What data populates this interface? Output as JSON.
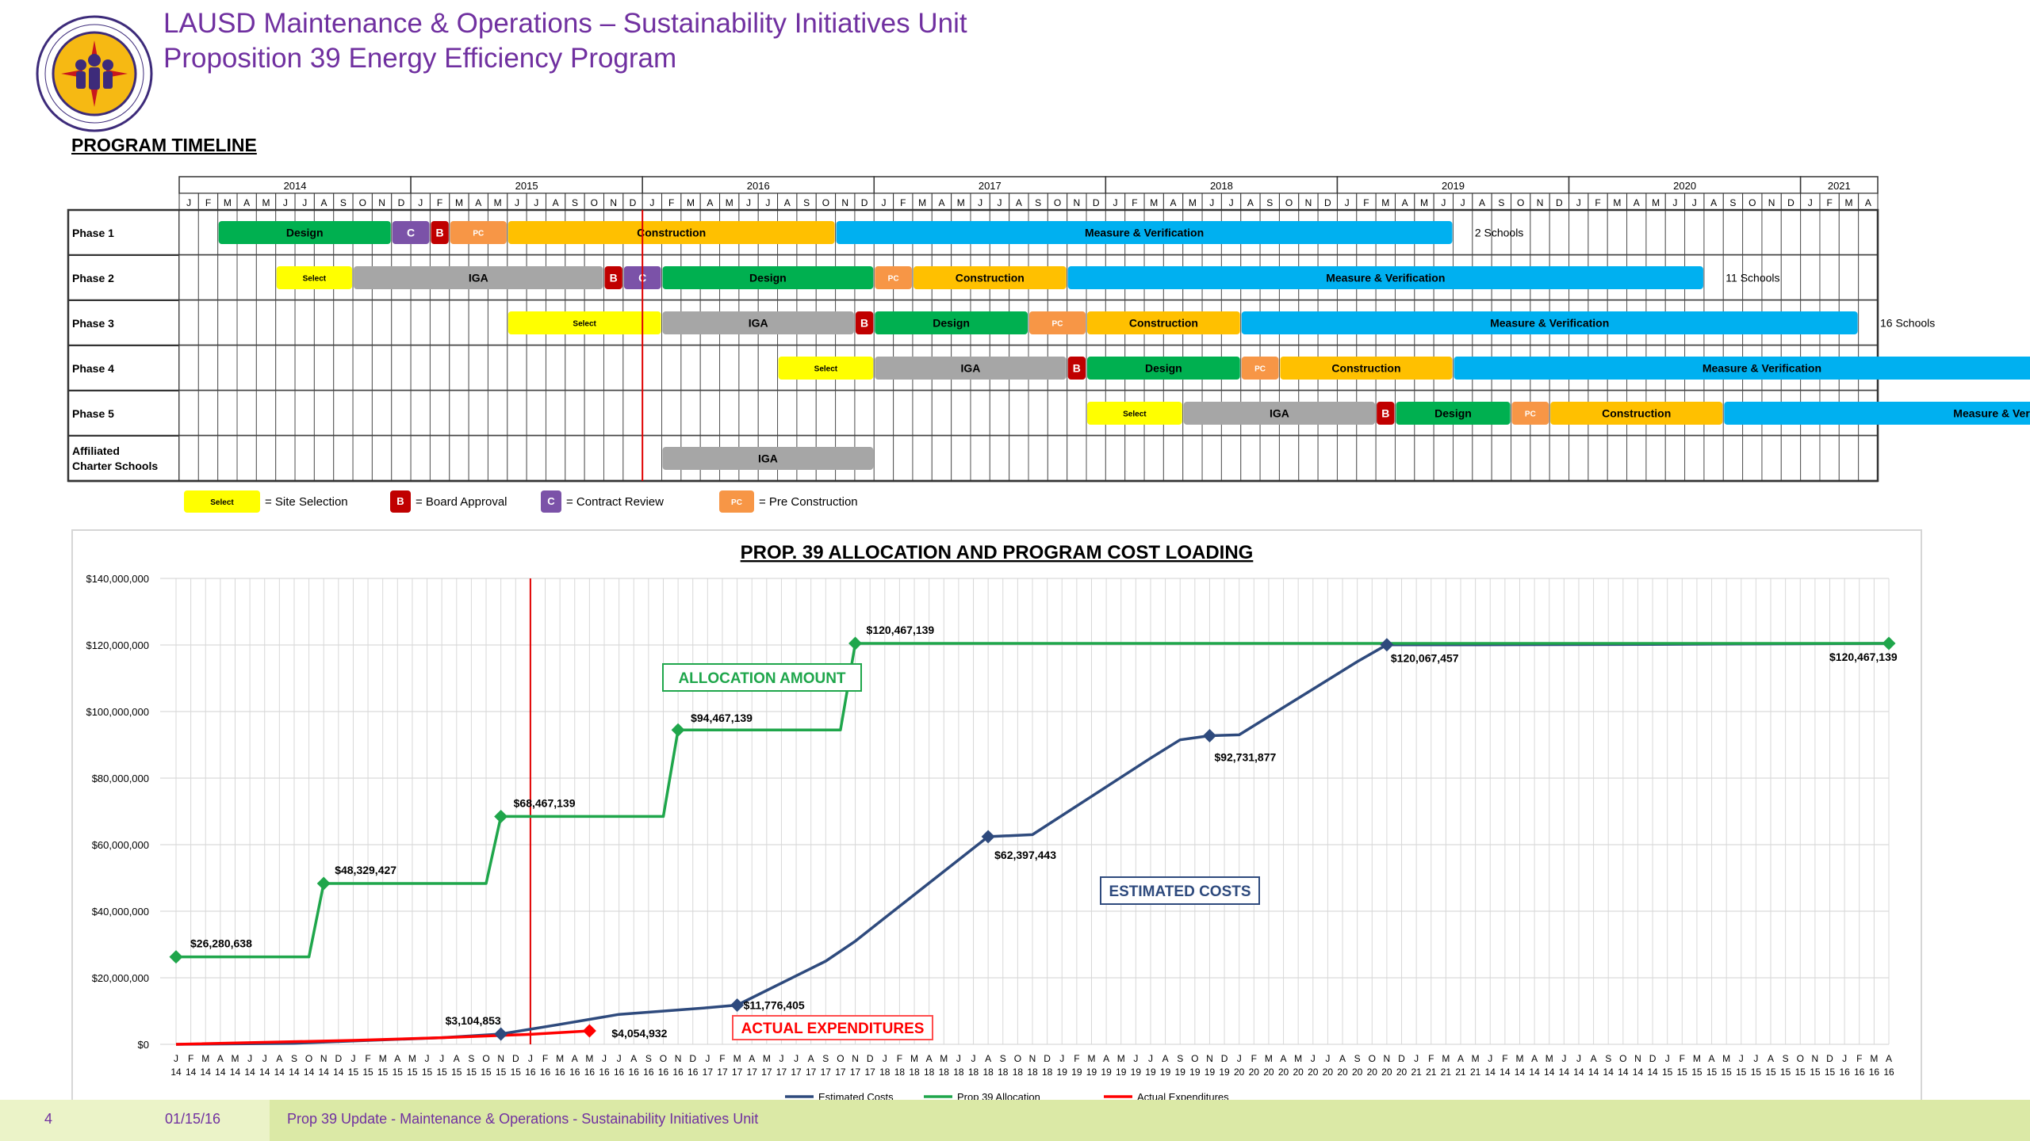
{
  "header": {
    "title_line1": "LAUSD Maintenance & Operations – Sustainability Initiatives Unit",
    "title_line2": "Proposition 39 Energy Efficiency Program",
    "logo_icon": "lausd-board-of-education-seal-icon",
    "logo_text": "LOS ANGELES UNIFIED SCHOOL DISTRICT · BOARD OF EDUCATION"
  },
  "timeline": {
    "title": "PROGRAM TIMELINE",
    "years": [
      "2014",
      "2015",
      "2016",
      "2017",
      "2018",
      "2019",
      "2020",
      "2021"
    ],
    "months": [
      "J",
      "F",
      "M",
      "A",
      "M",
      "J",
      "J",
      "A",
      "S",
      "O",
      "N",
      "D"
    ],
    "rows": [
      {
        "label": "Phase 1",
        "bars": [
          {
            "label": "Design",
            "type": "design",
            "start": 2,
            "end": 11
          },
          {
            "label": "C",
            "type": "contract",
            "start": 11,
            "end": 13
          },
          {
            "label": "B",
            "type": "board",
            "start": 13,
            "end": 14
          },
          {
            "label": "PC",
            "type": "pc",
            "start": 14,
            "end": 17
          },
          {
            "label": "Construction",
            "type": "construction",
            "start": 17,
            "end": 34
          },
          {
            "label": "Measure & Verification",
            "type": "mv",
            "start": 34,
            "end": 66
          }
        ],
        "note": "2 Schools",
        "note_pos": 67
      },
      {
        "label": "Phase 2",
        "bars": [
          {
            "label": "Select",
            "type": "select",
            "start": 5,
            "end": 9
          },
          {
            "label": "IGA",
            "type": "iga",
            "start": 9,
            "end": 22
          },
          {
            "label": "B",
            "type": "board",
            "start": 22,
            "end": 23
          },
          {
            "label": "C",
            "type": "contract",
            "start": 23,
            "end": 25
          },
          {
            "label": "Design",
            "type": "design",
            "start": 25,
            "end": 36
          },
          {
            "label": "PC",
            "type": "pc",
            "start": 36,
            "end": 38
          },
          {
            "label": "Construction",
            "type": "construction",
            "start": 38,
            "end": 46
          },
          {
            "label": "Measure & Verification",
            "type": "mv",
            "start": 46,
            "end": 79
          }
        ],
        "note": "11 Schools",
        "note_pos": 80
      },
      {
        "label": "Phase 3",
        "bars": [
          {
            "label": "Select",
            "type": "select",
            "start": 17,
            "end": 25
          },
          {
            "label": "IGA",
            "type": "iga",
            "start": 25,
            "end": 35
          },
          {
            "label": "B",
            "type": "board",
            "start": 35,
            "end": 36
          },
          {
            "label": "Design",
            "type": "design",
            "start": 36,
            "end": 44
          },
          {
            "label": "PC",
            "type": "pc",
            "start": 44,
            "end": 47
          },
          {
            "label": "Construction",
            "type": "construction",
            "start": 47,
            "end": 55
          },
          {
            "label": "Measure & Verification",
            "type": "mv",
            "start": 55,
            "end": 87
          }
        ],
        "note": "16 Schools",
        "note_pos": 88
      },
      {
        "label": "Phase 4",
        "bars": [
          {
            "label": "Select",
            "type": "select",
            "start": 31,
            "end": 36
          },
          {
            "label": "IGA",
            "type": "iga",
            "start": 36,
            "end": 46
          },
          {
            "label": "B",
            "type": "board",
            "start": 46,
            "end": 47
          },
          {
            "label": "Design",
            "type": "design",
            "start": 47,
            "end": 55
          },
          {
            "label": "PC",
            "type": "pc",
            "start": 55,
            "end": 57
          },
          {
            "label": "Construction",
            "type": "construction",
            "start": 57,
            "end": 66
          },
          {
            "label": "Measure & Verification",
            "type": "mv",
            "start": 66,
            "end": 98
          }
        ],
        "note": "",
        "note_pos": 0
      },
      {
        "label": "Phase 5",
        "bars": [
          {
            "label": "Select",
            "type": "select",
            "start": 47,
            "end": 52
          },
          {
            "label": "IGA",
            "type": "iga",
            "start": 52,
            "end": 62
          },
          {
            "label": "B",
            "type": "board",
            "start": 62,
            "end": 63
          },
          {
            "label": "Design",
            "type": "design",
            "start": 63,
            "end": 69
          },
          {
            "label": "PC",
            "type": "pc",
            "start": 69,
            "end": 71
          },
          {
            "label": "Construction",
            "type": "construction",
            "start": 71,
            "end": 80
          },
          {
            "label": "Measure & Verification",
            "type": "mv",
            "start": 80,
            "end": 110
          }
        ],
        "note": "",
        "note_pos": 0
      },
      {
        "label": "Affiliated Charter Schools",
        "bars": [
          {
            "label": "IGA",
            "type": "iga",
            "start": 25,
            "end": 36
          }
        ],
        "note": "",
        "note_pos": 0
      }
    ],
    "legend": [
      {
        "swatch": "Select",
        "type": "select",
        "text": "= Site Selection"
      },
      {
        "swatch": "B",
        "type": "board",
        "text": "= Board Approval"
      },
      {
        "swatch": "C",
        "type": "contract",
        "text": "= Contract Review"
      },
      {
        "swatch": "PC",
        "type": "pc",
        "text": "= Pre Construction"
      }
    ],
    "colors": {
      "design": "#00b050",
      "contract": "#7b52a8",
      "board": "#c00000",
      "pc": "#f79646",
      "construction": "#ffc000",
      "mv": "#00b0f0",
      "select": "#ffff00",
      "iga": "#a6a6a6"
    },
    "current_marker_index": 24
  },
  "chart_data": {
    "type": "line",
    "title": "PROP. 39 ALLOCATION AND PROGRAM COST LOADING",
    "x_labels_month": [
      "J",
      "F",
      "M",
      "A",
      "M",
      "J",
      "J",
      "A",
      "S",
      "O",
      "N",
      "D",
      "J",
      "F",
      "M",
      "A",
      "M",
      "J",
      "J",
      "A",
      "S",
      "O",
      "N",
      "D",
      "J",
      "F",
      "M",
      "A",
      "M",
      "J",
      "J",
      "A",
      "S",
      "O",
      "N",
      "D",
      "J",
      "F",
      "M",
      "A",
      "M",
      "J",
      "J",
      "A",
      "S",
      "O",
      "N",
      "D",
      "J",
      "F",
      "M",
      "A",
      "M",
      "J",
      "J",
      "A",
      "S",
      "O",
      "N",
      "D",
      "J",
      "F",
      "M",
      "A",
      "M",
      "J",
      "J",
      "A",
      "S",
      "O",
      "N",
      "D",
      "J",
      "F",
      "M",
      "A",
      "M",
      "J",
      "J",
      "A",
      "S",
      "O",
      "N",
      "D",
      "J",
      "F",
      "M",
      "A",
      "M"
    ],
    "x_labels_year": [
      "14",
      "14",
      "14",
      "14",
      "14",
      "14",
      "14",
      "14",
      "14",
      "14",
      "14",
      "14",
      "15",
      "15",
      "15",
      "15",
      "15",
      "15",
      "15",
      "15",
      "15",
      "15",
      "15",
      "15",
      "16",
      "16",
      "16",
      "16",
      "16",
      "16",
      "16",
      "16",
      "16",
      "16",
      "16",
      "16",
      "17",
      "17",
      "17",
      "17",
      "17",
      "17",
      "17",
      "17",
      "17",
      "17",
      "17",
      "17",
      "18",
      "18",
      "18",
      "18",
      "18",
      "18",
      "18",
      "18",
      "18",
      "18",
      "18",
      "18",
      "19",
      "19",
      "19",
      "19",
      "19",
      "19",
      "19",
      "19",
      "19",
      "19",
      "19",
      "19",
      "20",
      "20",
      "20",
      "20",
      "20",
      "20",
      "20",
      "20",
      "20",
      "20",
      "20",
      "20",
      "21",
      "21",
      "21",
      "21",
      "21"
    ],
    "ylim": [
      0,
      140000000
    ],
    "y_ticks": [
      "$0",
      "$20,000,000",
      "$40,000,000",
      "$60,000,000",
      "$80,000,000",
      "$100,000,000",
      "$120,000,000",
      "$140,000,000"
    ],
    "series": [
      {
        "name": "Estimated Costs",
        "color": "#2e4a7d",
        "points": [
          [
            0,
            0
          ],
          [
            8,
            300000
          ],
          [
            12,
            1000000
          ],
          [
            18,
            2000000
          ],
          [
            22,
            3104853
          ],
          [
            26,
            6000000
          ],
          [
            30,
            9000000
          ],
          [
            36,
            11000000
          ],
          [
            38,
            11776405
          ],
          [
            44,
            25000000
          ],
          [
            46,
            31000000
          ],
          [
            48,
            38000000
          ],
          [
            55,
            62397443
          ],
          [
            58,
            63000000
          ],
          [
            66,
            86000000
          ],
          [
            68,
            91500000
          ],
          [
            70,
            92731877
          ],
          [
            72,
            93000000
          ],
          [
            80,
            115000000
          ],
          [
            82,
            120067457
          ],
          [
            88,
            120067457
          ],
          [
            100,
            120200000
          ],
          [
            116,
            120467139
          ]
        ]
      },
      {
        "name": "Prop 39 Allocation",
        "color": "#1fa64b",
        "points": [
          [
            0,
            26280638
          ],
          [
            9,
            26280638
          ],
          [
            10,
            48329427
          ],
          [
            21,
            48329427
          ],
          [
            22,
            68467139
          ],
          [
            33,
            68467139
          ],
          [
            34,
            94467139
          ],
          [
            45,
            94467139
          ],
          [
            46,
            120467139
          ],
          [
            116,
            120467139
          ]
        ]
      },
      {
        "name": "Actual Expenditures",
        "color": "#ff0000",
        "points": [
          [
            0,
            0
          ],
          [
            12,
            1200000
          ],
          [
            18,
            2000000
          ],
          [
            24,
            3000000
          ],
          [
            28,
            4054932
          ]
        ]
      }
    ],
    "point_labels": [
      {
        "series": 0,
        "x": 22,
        "y": 3104853,
        "text": "$3,104,853"
      },
      {
        "series": 0,
        "x": 38,
        "y": 11776405,
        "text": "$11,776,405"
      },
      {
        "series": 0,
        "x": 55,
        "y": 62397443,
        "text": "$62,397,443"
      },
      {
        "series": 0,
        "x": 70,
        "y": 92731877,
        "text": "$92,731,877"
      },
      {
        "series": 0,
        "x": 82,
        "y": 120067457,
        "text": "$120,067,457"
      },
      {
        "series": 1,
        "x": 0,
        "y": 26280638,
        "text": "$26,280,638"
      },
      {
        "series": 1,
        "x": 10,
        "y": 48329427,
        "text": "$48,329,427"
      },
      {
        "series": 1,
        "x": 22,
        "y": 68467139,
        "text": "$68,467,139"
      },
      {
        "series": 1,
        "x": 34,
        "y": 94467139,
        "text": "$94,467,139"
      },
      {
        "series": 1,
        "x": 46,
        "y": 120467139,
        "text": "$120,467,139"
      },
      {
        "series": 1,
        "x": 116,
        "y": 120467139,
        "text": "$120,467,139"
      },
      {
        "series": 2,
        "x": 28,
        "y": 4054932,
        "text": "$4,054,932"
      }
    ],
    "annotations": {
      "allocation": "ALLOCATION AMOUNT",
      "estimated": "ESTIMATED COSTS",
      "actual": "ACTUAL EXPENDITURES"
    },
    "vline_x": 24,
    "grid": true,
    "legend_position": "bottom"
  },
  "footer": {
    "page": "4",
    "date": "01/15/16",
    "text": "Prop 39 Update - Maintenance & Operations - Sustainability Initiatives Unit"
  }
}
